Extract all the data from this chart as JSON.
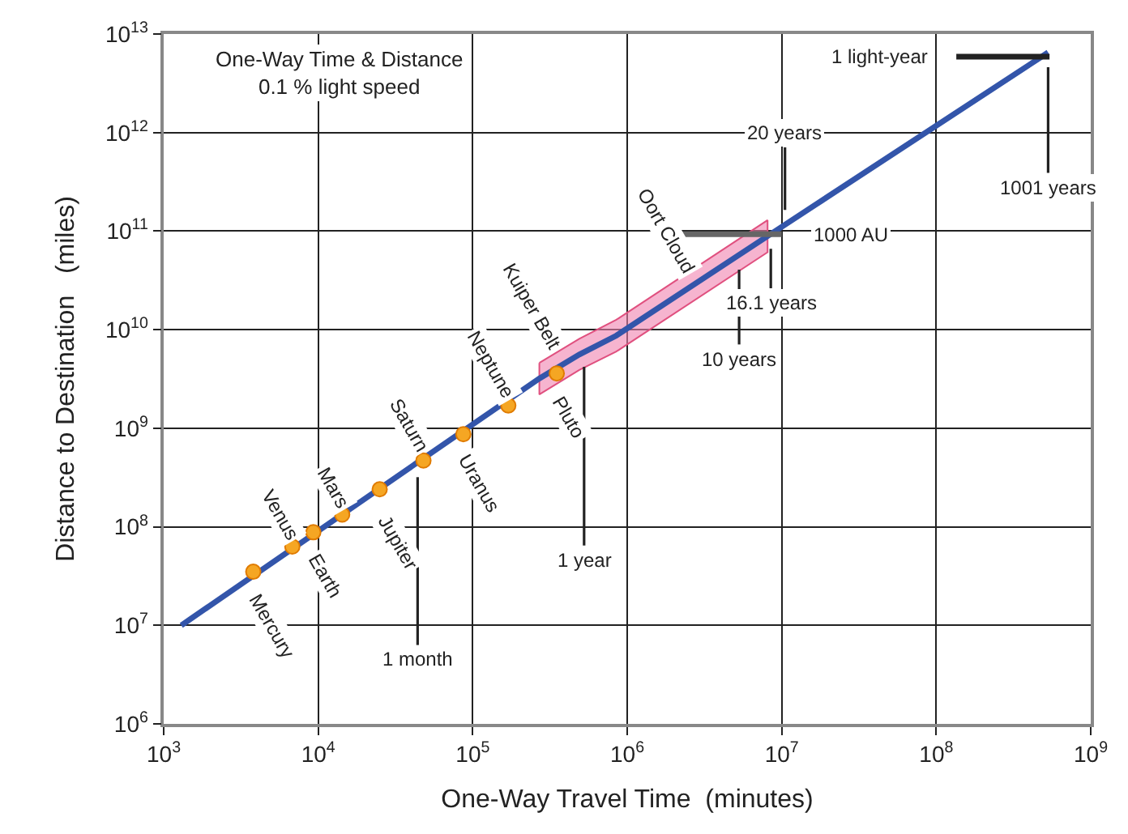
{
  "chart_data": {
    "type": "scatter",
    "title": "One-Way Time & Distance",
    "subtitle": "0.1 % light speed",
    "xlabel": "One-Way Travel Time  (minutes)",
    "ylabel": "Distance to Destination   (miles)",
    "log": "xy",
    "grid": true,
    "xlim": [
      1000,
      1000000000
    ],
    "ylim": [
      1000000,
      10000000000000
    ],
    "xticks": [
      {
        "value": 1000,
        "label": "10$^{3}$"
      },
      {
        "value": 10000,
        "label": "10$^{4}$"
      },
      {
        "value": 100000,
        "label": "10$^{5}$"
      },
      {
        "value": 1000000,
        "label": "10$^{6}$"
      },
      {
        "value": 10000000,
        "label": "10$^{7}$"
      },
      {
        "value": 100000000,
        "label": "10$^{8}$"
      },
      {
        "value": 1000000000,
        "label": "10$^{9}$"
      }
    ],
    "yticks": [
      {
        "value": 1000000,
        "label": "10$^{6}$"
      },
      {
        "value": 10000000,
        "label": "10$^{7}$"
      },
      {
        "value": 100000000,
        "label": "10$^{8}$"
      },
      {
        "value": 1000000000,
        "label": "10$^{9}$"
      },
      {
        "value": 10000000000,
        "label": "10$^{10}$"
      },
      {
        "value": 100000000000,
        "label": "10$^{11}$"
      },
      {
        "value": 1000000000000,
        "label": "10$^{12}$"
      },
      {
        "value": 10000000000000,
        "label": "10$^{13}$"
      }
    ],
    "series": [
      {
        "type": "line",
        "color": "#3355aa",
        "marker": "none",
        "x": [
          1300,
          270000,
          490000,
          850000,
          8100000,
          530000000
        ],
        "values": [
          10000000,
          3200000000,
          5600000000,
          8700000000,
          89000000000,
          6500000000000
        ],
        "lower": [
          null,
          2200000000,
          3900000000,
          6000000000,
          61000000000,
          null
        ],
        "upper": [
          null,
          4600000000,
          8100000000,
          12600000000,
          129000000000,
          null
        ]
      },
      {
        "color": "#f5a623",
        "marker": "circle",
        "x": [
          3800,
          6800,
          9300,
          14300,
          25000,
          48000,
          87000,
          170000,
          350000
        ],
        "values": [
          35000000,
          63000000,
          88000000,
          133000000,
          240000000,
          470000000,
          870000000,
          1700000000,
          3600000000
        ]
      }
    ],
    "ref_lines": [
      {
        "axis": "x",
        "value": 44000,
        "label": "1 month"
      },
      {
        "axis": "x",
        "value": 526000,
        "label": "1 year"
      },
      {
        "axis": "x",
        "value": 5300000,
        "label": "10 years"
      },
      {
        "axis": "x",
        "value": 8500000,
        "label": "16.1 years"
      },
      {
        "axis": "x",
        "value": 10500000,
        "label": "20 years"
      },
      {
        "axis": "x",
        "value": 530000000,
        "label": "1001 years"
      },
      {
        "axis": "y",
        "value": 5900000000000,
        "label": "1 light-year"
      },
      {
        "axis": "y",
        "value": 93000000000,
        "label": "1000 AU",
        "color": "#666666"
      }
    ],
    "annotations": [
      {
        "text": "Mercury",
        "x": 3800,
        "y": 35000000
      },
      {
        "text": "Venus",
        "x": 6800,
        "y": 63000000
      },
      {
        "text": "Earth",
        "x": 9300,
        "y": 88000000
      },
      {
        "text": "Mars",
        "x": 14300,
        "y": 133000000
      },
      {
        "text": "Jupiter",
        "x": 25000,
        "y": 240000000
      },
      {
        "text": "Saturn",
        "x": 48000,
        "y": 470000000
      },
      {
        "text": "Uranus",
        "x": 87000,
        "y": 870000000
      },
      {
        "text": "Neptune",
        "x": 170000,
        "y": 1700000000
      },
      {
        "text": "Pluto",
        "x": 350000,
        "y": 3600000000
      },
      {
        "text": "Kuiper Belt",
        "x": 370000,
        "y": 4300000000
      },
      {
        "text": "Oort Cloud",
        "x": 2600000,
        "y": 28000000000
      }
    ]
  }
}
